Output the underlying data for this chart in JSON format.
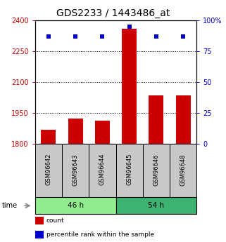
{
  "title": "GDS2233 / 1443486_at",
  "samples": [
    "GSM96642",
    "GSM96643",
    "GSM96644",
    "GSM96645",
    "GSM96646",
    "GSM96648"
  ],
  "counts": [
    1870,
    1925,
    1915,
    2360,
    2035,
    2035
  ],
  "percentiles": [
    87,
    87,
    87,
    95,
    87,
    87
  ],
  "ylim_left": [
    1800,
    2400
  ],
  "ylim_right": [
    0,
    100
  ],
  "yticks_left": [
    1800,
    1950,
    2100,
    2250,
    2400
  ],
  "yticks_right": [
    0,
    25,
    50,
    75,
    100
  ],
  "yticklabels_right": [
    "0",
    "25",
    "50",
    "75",
    "100%"
  ],
  "groups": [
    {
      "label": "46 h",
      "indices": [
        0,
        1,
        2
      ],
      "color": "#90EE90"
    },
    {
      "label": "54 h",
      "indices": [
        3,
        4,
        5
      ],
      "color": "#3CB371"
    }
  ],
  "bar_color": "#CC0000",
  "dot_color": "#0000CC",
  "bar_width": 0.55,
  "bg_color": "#FFFFFF",
  "sample_bg_color": "#C8C8C8",
  "legend_labels": [
    "count",
    "percentile rank within the sample"
  ],
  "legend_colors": [
    "#CC0000",
    "#0000CC"
  ],
  "time_label": "time",
  "title_fontsize": 10,
  "tick_fontsize": 7,
  "label_fontsize": 7
}
